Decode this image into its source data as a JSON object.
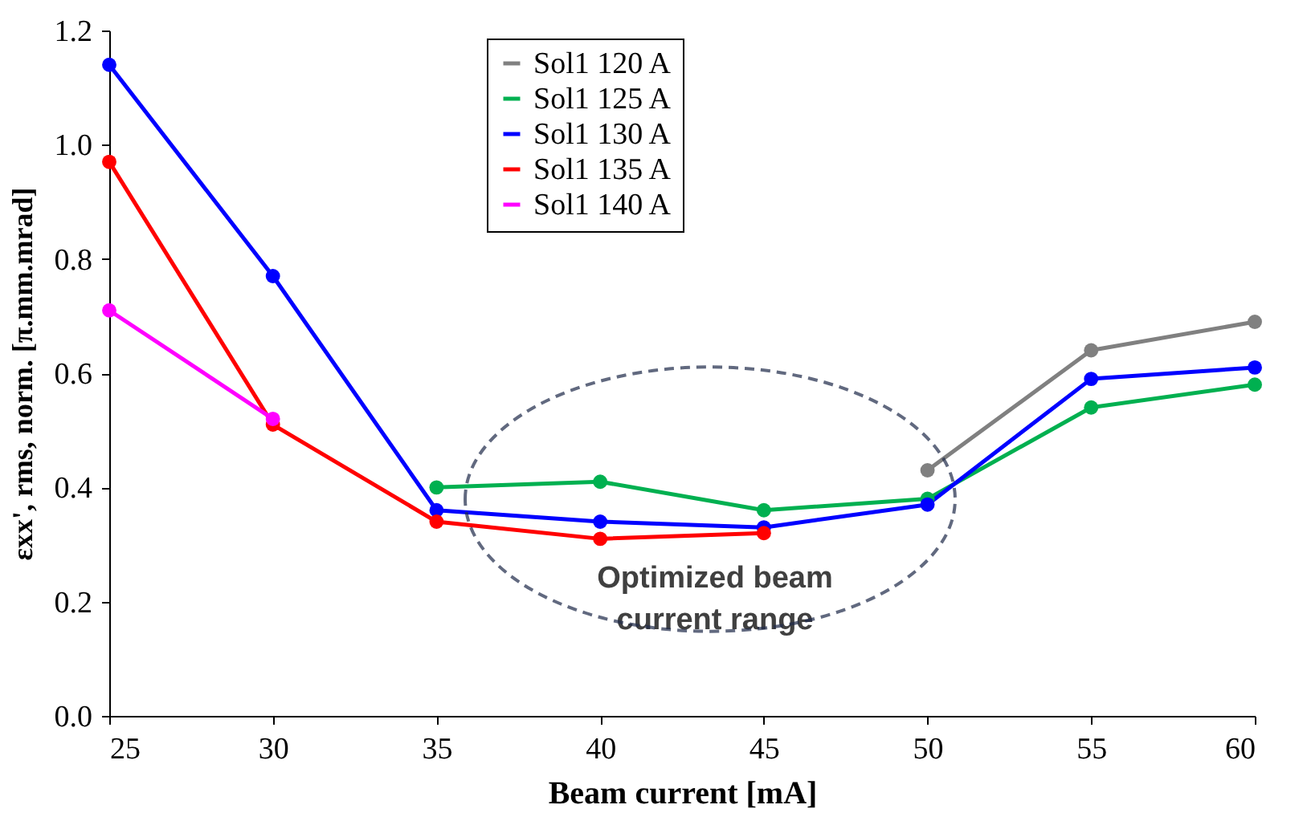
{
  "chart_data": {
    "type": "line",
    "xlabel": "Beam current [mA]",
    "ylabel": "εxx', rms, norm. [π.mm.mrad]",
    "x": [
      25,
      30,
      35,
      40,
      45,
      50,
      55,
      60
    ],
    "series": [
      {
        "name": "Sol1 120 A",
        "color": "#808080",
        "values": [
          null,
          null,
          null,
          null,
          null,
          0.43,
          0.64,
          0.69
        ]
      },
      {
        "name": "Sol1 125 A",
        "color": "#00b050",
        "values": [
          null,
          null,
          0.4,
          0.41,
          0.36,
          0.38,
          0.54,
          0.58
        ]
      },
      {
        "name": "Sol1 130 A",
        "color": "#0000ff",
        "values": [
          1.14,
          0.77,
          0.36,
          0.34,
          0.33,
          0.37,
          0.59,
          0.61
        ]
      },
      {
        "name": "Sol1 135 A",
        "color": "#ff0000",
        "values": [
          0.97,
          0.51,
          0.34,
          0.31,
          0.32,
          null,
          null,
          null
        ]
      },
      {
        "name": "Sol1 140 A",
        "color": "#ff00ff",
        "values": [
          0.71,
          0.52,
          null,
          null,
          null,
          null,
          null,
          null
        ]
      }
    ],
    "xlim": [
      25,
      60
    ],
    "xticks": [
      25,
      30,
      35,
      40,
      45,
      50,
      55,
      60
    ],
    "ylim": [
      0,
      1.2
    ],
    "yticks": [
      {
        "value": 0,
        "label": "0.0"
      },
      0.2,
      0.4,
      0.6,
      0.8,
      {
        "value": 1,
        "label": "1.0"
      },
      1.2
    ],
    "annotations": [
      "Optimized beam current range"
    ],
    "grid": false,
    "legend": "top",
    "marker": "circle",
    "line_style": "solid"
  }
}
